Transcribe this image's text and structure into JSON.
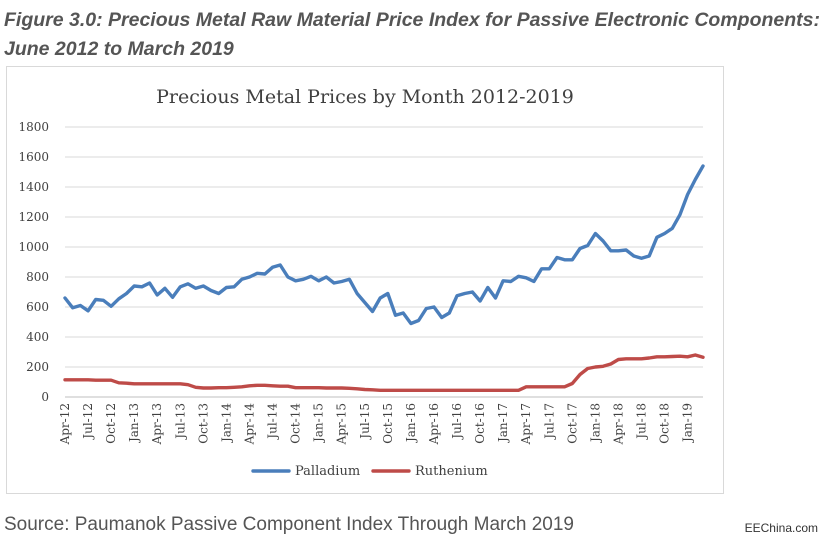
{
  "figure_title": "Figure 3.0: Precious Metal Raw Material Price Index for Passive Electronic Components: June 2012 to March 2019",
  "source_text": "Source: Paumanok Passive Component Index Through March 2019",
  "brand_text": "EEChina.com",
  "colors": {
    "palladium": "#4a7ebb",
    "ruthenium": "#be4b48",
    "grid": "#d9d9d9",
    "axis_text": "#404040"
  },
  "chart_data": {
    "type": "line",
    "title": "Precious Metal Prices by Month 2012-2019",
    "xlabel": "",
    "ylabel": "",
    "ylim": [
      0,
      1800
    ],
    "yticks": [
      0,
      200,
      400,
      600,
      800,
      1000,
      1200,
      1400,
      1600,
      1800
    ],
    "x_tick_labels": [
      "Apr-12",
      "Jul-12",
      "Oct-12",
      "Jan-13",
      "Apr-13",
      "Jul-13",
      "Oct-13",
      "Jan-14",
      "Apr-14",
      "Jul-14",
      "Oct-14",
      "Jan-15",
      "Apr-15",
      "Jul-15",
      "Oct-15",
      "Jan-16",
      "Apr-16",
      "Jul-16",
      "Oct-16",
      "Jan-17",
      "Apr-17",
      "Jul-17",
      "Oct-17",
      "Jan-18",
      "Apr-18",
      "Jul-18",
      "Oct-18",
      "Jan-19"
    ],
    "legend_position": "bottom",
    "series": [
      {
        "name": "Palladium",
        "values": [
          660,
          595,
          610,
          575,
          650,
          645,
          605,
          655,
          690,
          740,
          735,
          760,
          680,
          725,
          665,
          735,
          755,
          725,
          740,
          710,
          690,
          730,
          735,
          785,
          800,
          825,
          820,
          865,
          880,
          800,
          775,
          785,
          805,
          775,
          800,
          760,
          770,
          785,
          690,
          630,
          570,
          660,
          690,
          545,
          560,
          490,
          510,
          590,
          600,
          530,
          560,
          675,
          690,
          700,
          640,
          730,
          660,
          775,
          770,
          805,
          795,
          770,
          855,
          855,
          930,
          915,
          915,
          990,
          1010,
          1090,
          1040,
          975,
          975,
          980,
          940,
          925,
          940,
          1065,
          1090,
          1125,
          1215,
          1350,
          1450,
          1540
        ]
      },
      {
        "name": "Ruthenium",
        "values": [
          115,
          115,
          115,
          115,
          112,
          112,
          112,
          95,
          92,
          88,
          88,
          88,
          88,
          88,
          88,
          88,
          82,
          65,
          60,
          60,
          62,
          62,
          65,
          68,
          75,
          78,
          78,
          75,
          72,
          72,
          62,
          62,
          62,
          62,
          60,
          60,
          60,
          58,
          55,
          50,
          48,
          45,
          45,
          45,
          45,
          45,
          45,
          45,
          45,
          45,
          45,
          45,
          45,
          45,
          45,
          45,
          45,
          45,
          45,
          45,
          68,
          68,
          68,
          68,
          68,
          68,
          90,
          150,
          190,
          200,
          205,
          220,
          250,
          255,
          255,
          255,
          260,
          268,
          268,
          270,
          272,
          268,
          280,
          265
        ]
      }
    ]
  }
}
